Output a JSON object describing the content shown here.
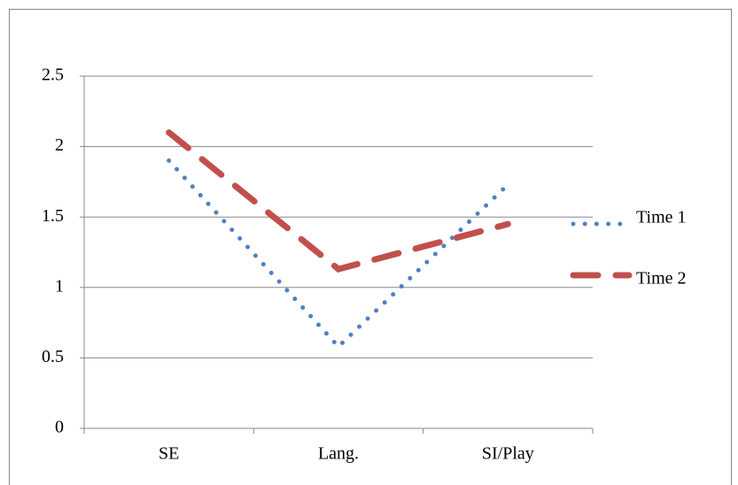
{
  "chart_data": {
    "type": "line",
    "categories": [
      "SE",
      "Lang.",
      "SI/Play"
    ],
    "series": [
      {
        "name": "Time 1",
        "color": "#4f81bd",
        "style": "dotted",
        "values": [
          1.9,
          0.58,
          1.73
        ]
      },
      {
        "name": "Time 2",
        "color": "#c0504d",
        "style": "dashed",
        "values": [
          2.1,
          1.13,
          1.45
        ]
      }
    ],
    "ylim": [
      0,
      2.5
    ],
    "yticks": [
      0,
      0.5,
      1,
      1.5,
      2,
      2.5
    ],
    "grid": true,
    "legend": "right"
  }
}
